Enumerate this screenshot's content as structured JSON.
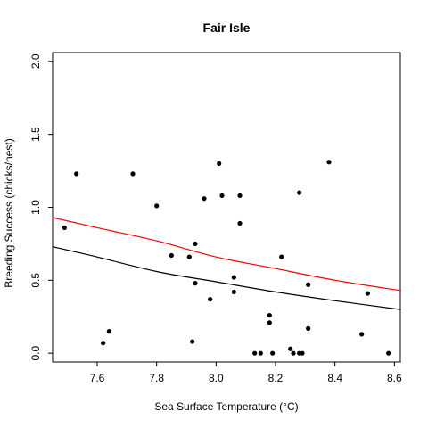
{
  "chart_data": {
    "type": "scatter",
    "title": "Fair Isle",
    "xlabel": "Sea Surface Temperature (°C)",
    "ylabel": "Breeding Success (chicks/nest)",
    "xlim": [
      7.45,
      8.62
    ],
    "ylim": [
      -0.06,
      2.06
    ],
    "xticks": [
      7.6,
      7.8,
      8.0,
      8.2,
      8.4,
      8.6
    ],
    "xtick_labels": [
      "7.6",
      "7.8",
      "8.0",
      "8.2",
      "8.4",
      "8.6"
    ],
    "yticks": [
      0.0,
      0.5,
      1.0,
      1.5,
      2.0
    ],
    "ytick_labels": [
      "0.0",
      "0.5",
      "1.0",
      "1.5",
      "2.0"
    ],
    "grid": false,
    "legend": "none",
    "points": {
      "x": [
        7.49,
        7.53,
        7.62,
        7.64,
        7.72,
        7.8,
        7.85,
        7.91,
        7.92,
        7.93,
        7.93,
        7.96,
        7.98,
        8.01,
        8.02,
        8.06,
        8.06,
        8.08,
        8.08,
        8.13,
        8.15,
        8.18,
        8.18,
        8.19,
        8.22,
        8.25,
        8.26,
        8.28,
        8.28,
        8.29,
        8.31,
        8.31,
        8.38,
        8.49,
        8.51,
        8.58
      ],
      "y": [
        0.86,
        1.23,
        0.07,
        0.15,
        1.23,
        1.01,
        0.67,
        0.66,
        0.08,
        0.75,
        0.48,
        1.06,
        0.37,
        1.3,
        1.08,
        0.52,
        0.42,
        0.89,
        1.08,
        0.0,
        0.0,
        0.26,
        0.21,
        0.0,
        0.66,
        0.03,
        0.0,
        1.1,
        0.0,
        0.0,
        0.47,
        0.17,
        1.31,
        0.13,
        0.41,
        0.0
      ]
    },
    "series": [
      {
        "color": "#000000",
        "x": [
          7.45,
          7.6,
          7.8,
          8.0,
          8.2,
          8.4,
          8.62
        ],
        "values": [
          0.73,
          0.66,
          0.56,
          0.49,
          0.42,
          0.36,
          0.3
        ]
      },
      {
        "color": "#ff0000",
        "x": [
          7.45,
          7.6,
          7.8,
          8.0,
          8.2,
          8.4,
          8.62
        ],
        "values": [
          0.93,
          0.86,
          0.77,
          0.66,
          0.58,
          0.5,
          0.43
        ]
      }
    ]
  }
}
